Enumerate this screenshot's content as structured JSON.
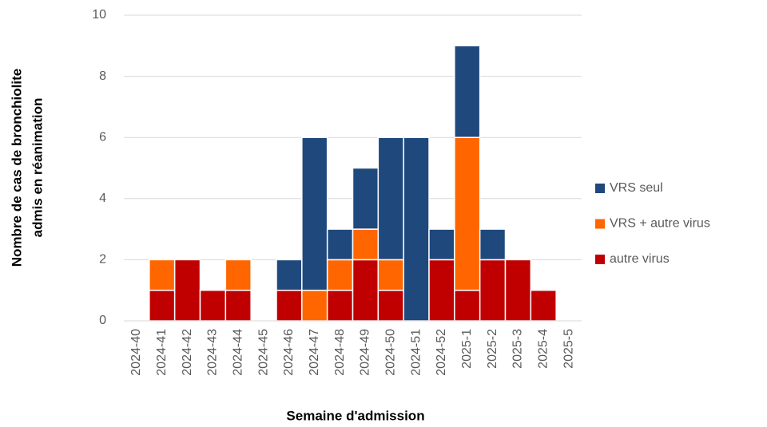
{
  "chart_data": {
    "type": "stacked_bar",
    "x_label": "Semaine d'admission",
    "y_label": [
      "Nombre de cas de bronchiolite",
      "admis en réanimation"
    ],
    "categories": [
      "2024-40",
      "2024-41",
      "2024-42",
      "2024-43",
      "2024-44",
      "2024-45",
      "2024-46",
      "2024-47",
      "2024-48",
      "2024-49",
      "2024-50",
      "2024-51",
      "2024-52",
      "2025-1",
      "2025-2",
      "2025-3",
      "2025-4",
      "2025-5"
    ],
    "series": [
      {
        "name": "autre virus",
        "color": "#c00000",
        "values": [
          0,
          1,
          2,
          1,
          1,
          0,
          1,
          0,
          1,
          2,
          1,
          0,
          2,
          1,
          2,
          2,
          1,
          0
        ]
      },
      {
        "name": "VRS + autre virus",
        "color": "#ff6600",
        "values": [
          0,
          1,
          0,
          0,
          1,
          0,
          0,
          1,
          1,
          1,
          1,
          0,
          0,
          5,
          0,
          0,
          0,
          0
        ]
      },
      {
        "name": "VRS seul",
        "color": "#1f497d",
        "values": [
          0,
          0,
          0,
          0,
          0,
          0,
          1,
          5,
          1,
          2,
          4,
          6,
          1,
          3,
          1,
          0,
          0,
          0
        ]
      }
    ],
    "ylim": [
      0,
      10
    ],
    "yticks": [
      0,
      2,
      4,
      6,
      8,
      10
    ],
    "grid": true,
    "legend": "right"
  }
}
